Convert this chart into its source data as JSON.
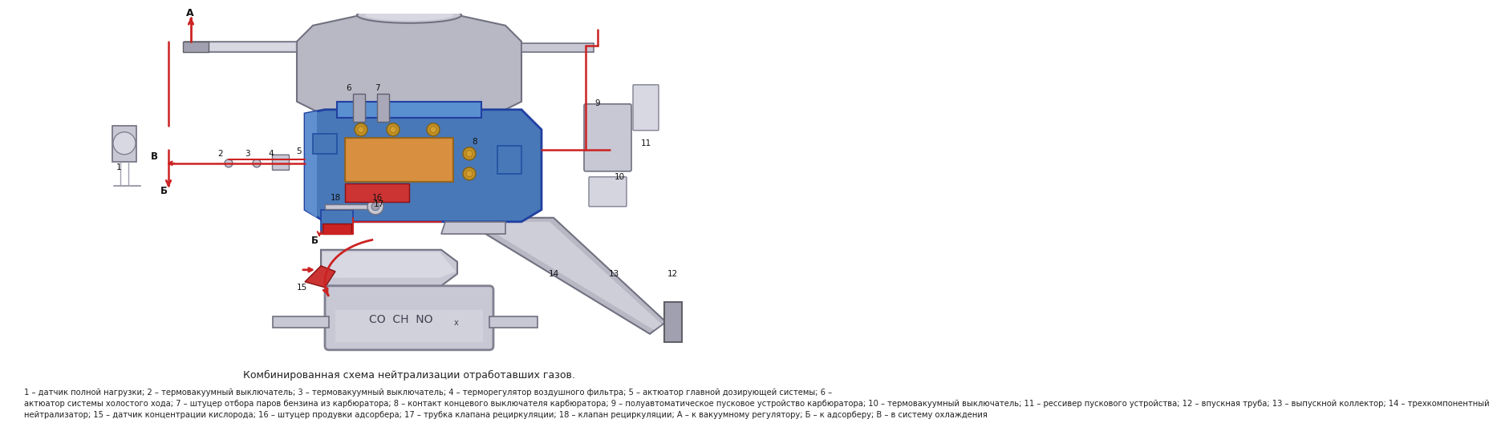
{
  "title": "Комбинированная схема нейтрализации отработавших газов.",
  "caption_line1": "1 – датчик полной нагрузки; 2 – термовакуумный выключатель; 3 – термовакуумный выключатель; 4 – терморегулятор воздушного фильтра; 5 – актюатор главной дозирующей системы; 6 –",
  "caption_line2": "актюатор системы холостого хода; 7 – штуцер отбора паров бензина из карбюратора; 8 – контакт концевого выключателя карбюратора; 9 – полуавтоматическое пусковое устройство карбюратора; 10 – термовакуумный выключатель; 11 – рессивер пускового устройства; 12 – впускная труба; 13 – выпускной коллектор; 14 – трехкомпонентный",
  "caption_line3": "нейтрализатор; 15 – датчик концентрации кислорода; 16 – штуцер продувки адсорбера; 17 – трубка клапана рециркуляции; 18 – клапан рециркуляции; А – к вакуумному регулятору; Б – к адсорберу; В – в систему охлаждения",
  "bg_color": "#ffffff",
  "title_color": "#222222",
  "caption_color": "#222222",
  "title_fontsize": 9.0,
  "caption_fontsize": 7.5,
  "fig_width": 10.0,
  "fig_height": 5.69
}
